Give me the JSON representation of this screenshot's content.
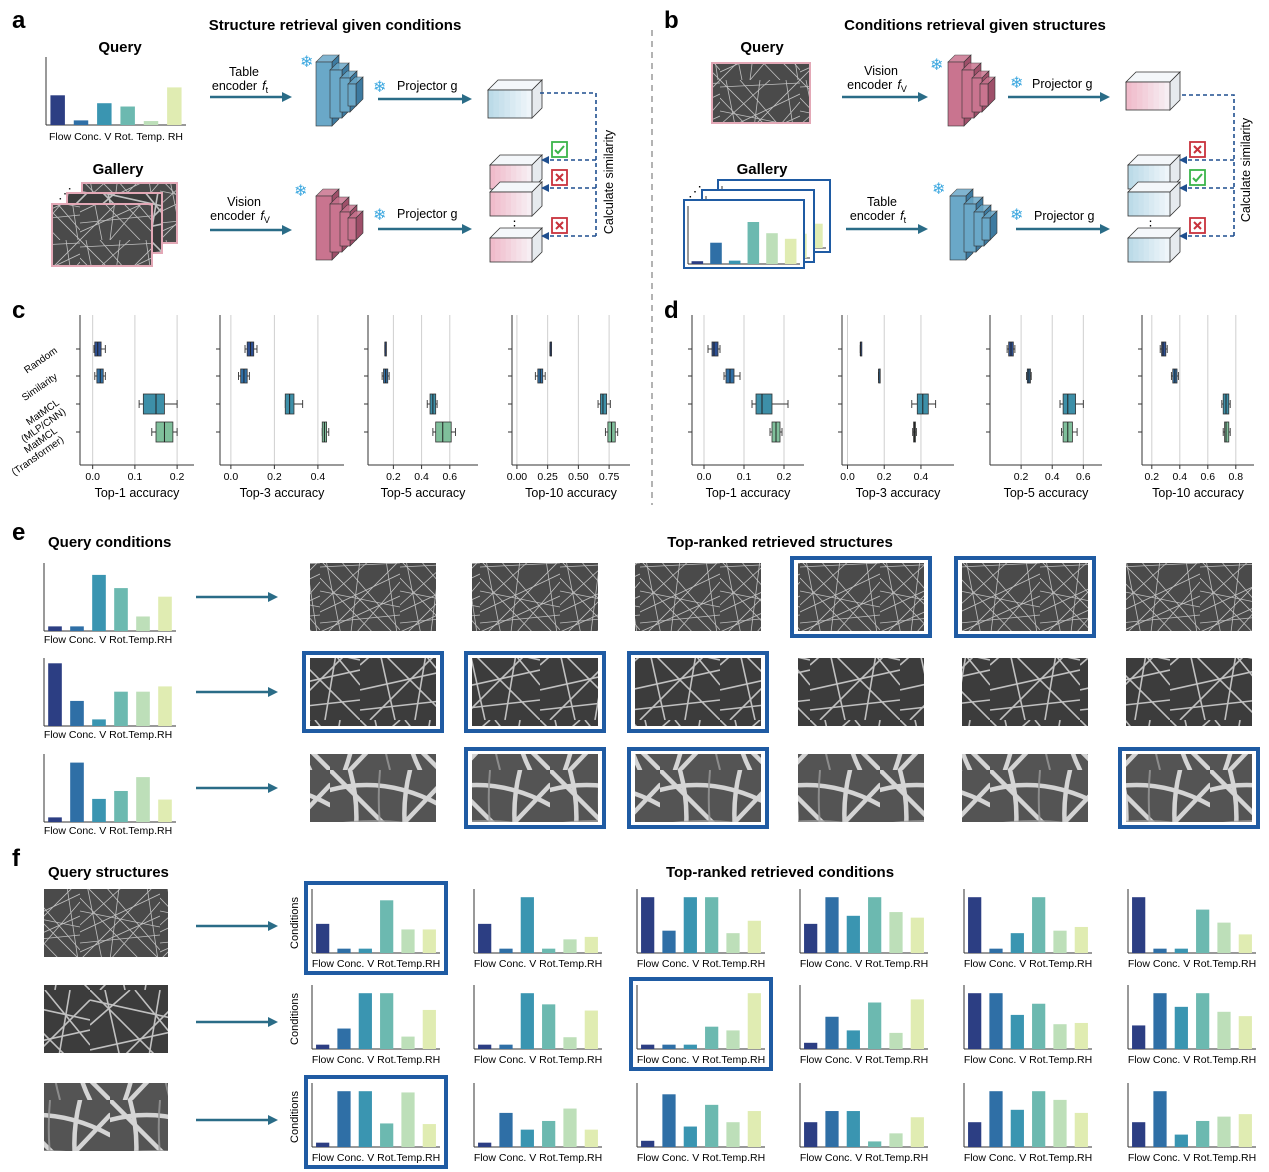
{
  "colors": {
    "var": [
      "#2c3e83",
      "#2f6fa6",
      "#3a95b1",
      "#6cb9b0",
      "#bddfb9",
      "#e0ecb2"
    ],
    "teal_block": "#6aa8c8",
    "pink_block": "#c9748f",
    "arrow": "#2a6c87",
    "dashed": "#1f4f8f",
    "highlight": "#1f5ba3",
    "check": "#3bb54a",
    "cross": "#c8323c",
    "snow": "#3fa9e0"
  },
  "panel_a": {
    "letter": "a",
    "title": "Structure retrieval given conditions",
    "query_label": "Query",
    "gallery_label": "Gallery",
    "table_encoder": [
      "Table",
      "encoder"
    ],
    "vision_encoder": [
      "Vision",
      "encoder"
    ],
    "f_table": "f",
    "f_table_sub": "t",
    "f_vision": "f",
    "f_vision_sub": "V",
    "projector": "Projector g",
    "similarity": "Calculate similarity",
    "axis_labels": [
      "Flow",
      "Conc.",
      "V",
      "Rot.",
      "Temp.",
      "RH"
    ],
    "query_bars": [
      0.45,
      0.07,
      0.33,
      0.28,
      0.06,
      0.57
    ],
    "marks": [
      "check",
      "cross",
      "cross"
    ]
  },
  "panel_b": {
    "letter": "b",
    "title": "Conditions retrieval given structures",
    "query_label": "Query",
    "gallery_label": "Gallery",
    "vision_encoder": [
      "Vision",
      "encoder"
    ],
    "table_encoder": [
      "Table",
      "encoder"
    ],
    "f_vision": "f",
    "f_vision_sub": "V",
    "f_table": "f",
    "f_table_sub": "t",
    "projector": "Projector g",
    "similarity": "Calculate similarity",
    "gallery_bars": [
      0.05,
      0.38,
      0.06,
      0.75,
      0.55,
      0.45
    ],
    "marks": [
      "cross",
      "check",
      "cross"
    ]
  },
  "panel_c": {
    "letter": "c",
    "row_labels": [
      [
        "Random"
      ],
      [
        "Similarity"
      ],
      [
        "MatMCL",
        "(MLP/CNN)"
      ],
      [
        "MatMCL",
        "(Transformer)"
      ]
    ],
    "subplots": [
      {
        "xlabel": "Top-1 accuracy",
        "ticks": [
          0.0,
          0.1,
          0.2
        ],
        "tick_labels": [
          "0.0",
          "0.1",
          "0.2"
        ],
        "range": [
          -0.03,
          0.24
        ],
        "boxes": [
          {
            "q1": 0.005,
            "med": 0.012,
            "q3": 0.02,
            "lo": 0.003,
            "hi": 0.03
          },
          {
            "q1": 0.01,
            "med": 0.018,
            "q3": 0.025,
            "lo": 0.005,
            "hi": 0.03
          },
          {
            "q1": 0.12,
            "med": 0.15,
            "q3": 0.17,
            "lo": 0.11,
            "hi": 0.2
          },
          {
            "q1": 0.15,
            "med": 0.17,
            "q3": 0.19,
            "lo": 0.14,
            "hi": 0.2
          }
        ]
      },
      {
        "xlabel": "Top-3 accuracy",
        "ticks": [
          0.0,
          0.2,
          0.4
        ],
        "tick_labels": [
          "0.0",
          "0.2",
          "0.4"
        ],
        "range": [
          -0.05,
          0.52
        ],
        "boxes": [
          {
            "q1": 0.075,
            "med": 0.09,
            "q3": 0.105,
            "lo": 0.065,
            "hi": 0.12
          },
          {
            "q1": 0.045,
            "med": 0.06,
            "q3": 0.075,
            "lo": 0.035,
            "hi": 0.085
          },
          {
            "q1": 0.25,
            "med": 0.27,
            "q3": 0.29,
            "lo": 0.25,
            "hi": 0.33
          },
          {
            "q1": 0.42,
            "med": 0.43,
            "q3": 0.44,
            "lo": 0.42,
            "hi": 0.45
          }
        ]
      },
      {
        "xlabel": "Top-5 accuracy",
        "ticks": [
          0.2,
          0.4,
          0.6
        ],
        "tick_labels": [
          "0.2",
          "0.4",
          "0.6"
        ],
        "range": [
          0.02,
          0.8
        ],
        "boxes": [
          {
            "q1": 0.14,
            "med": 0.14,
            "q3": 0.14,
            "lo": 0.14,
            "hi": 0.14
          },
          {
            "q1": 0.13,
            "med": 0.145,
            "q3": 0.16,
            "lo": 0.12,
            "hi": 0.17
          },
          {
            "q1": 0.46,
            "med": 0.48,
            "q3": 0.5,
            "lo": 0.44,
            "hi": 0.51
          },
          {
            "q1": 0.5,
            "med": 0.55,
            "q3": 0.61,
            "lo": 0.48,
            "hi": 0.64
          }
        ]
      },
      {
        "xlabel": "Top-10 accuracy",
        "ticks": [
          0.0,
          0.25,
          0.5,
          0.75
        ],
        "tick_labels": [
          "0.00",
          "0.25",
          "0.50",
          "0.75"
        ],
        "range": [
          -0.04,
          0.92
        ],
        "boxes": [
          {
            "q1": 0.27,
            "med": 0.27,
            "q3": 0.27,
            "lo": 0.27,
            "hi": 0.27
          },
          {
            "q1": 0.17,
            "med": 0.19,
            "q3": 0.21,
            "lo": 0.15,
            "hi": 0.23
          },
          {
            "q1": 0.68,
            "med": 0.7,
            "q3": 0.73,
            "lo": 0.66,
            "hi": 0.76
          },
          {
            "q1": 0.74,
            "med": 0.77,
            "q3": 0.8,
            "lo": 0.72,
            "hi": 0.82
          }
        ]
      }
    ]
  },
  "panel_d": {
    "letter": "d",
    "subplots": [
      {
        "xlabel": "Top-1 accuracy",
        "ticks": [
          0.0,
          0.1,
          0.2
        ],
        "tick_labels": [
          "0.0",
          "0.1",
          "0.2"
        ],
        "range": [
          -0.03,
          0.25
        ],
        "boxes": [
          {
            "q1": 0.02,
            "med": 0.025,
            "q3": 0.035,
            "lo": 0.01,
            "hi": 0.04
          },
          {
            "q1": 0.055,
            "med": 0.065,
            "q3": 0.075,
            "lo": 0.05,
            "hi": 0.09
          },
          {
            "q1": 0.13,
            "med": 0.145,
            "q3": 0.17,
            "lo": 0.12,
            "hi": 0.21
          },
          {
            "q1": 0.17,
            "med": 0.18,
            "q3": 0.19,
            "lo": 0.165,
            "hi": 0.195
          }
        ]
      },
      {
        "xlabel": "Top-3 accuracy",
        "ticks": [
          0.0,
          0.2,
          0.4
        ],
        "tick_labels": [
          "0.0",
          "0.2",
          "0.4"
        ],
        "range": [
          -0.03,
          0.58
        ],
        "boxes": [
          {
            "q1": 0.07,
            "med": 0.07,
            "q3": 0.07,
            "lo": 0.07,
            "hi": 0.07
          },
          {
            "q1": 0.17,
            "med": 0.17,
            "q3": 0.17,
            "lo": 0.17,
            "hi": 0.17
          },
          {
            "q1": 0.38,
            "med": 0.41,
            "q3": 0.44,
            "lo": 0.35,
            "hi": 0.48
          },
          {
            "q1": 0.36,
            "med": 0.365,
            "q3": 0.37,
            "lo": 0.355,
            "hi": 0.375
          }
        ]
      },
      {
        "xlabel": "Top-5 accuracy",
        "ticks": [
          0.2,
          0.4,
          0.6
        ],
        "tick_labels": [
          "0.2",
          "0.4",
          "0.6"
        ],
        "range": [
          0.0,
          0.72
        ],
        "boxes": [
          {
            "q1": 0.12,
            "med": 0.135,
            "q3": 0.15,
            "lo": 0.11,
            "hi": 0.16
          },
          {
            "q1": 0.24,
            "med": 0.25,
            "q3": 0.26,
            "lo": 0.235,
            "hi": 0.265
          },
          {
            "q1": 0.47,
            "med": 0.5,
            "q3": 0.55,
            "lo": 0.45,
            "hi": 0.6
          },
          {
            "q1": 0.47,
            "med": 0.5,
            "q3": 0.53,
            "lo": 0.46,
            "hi": 0.56
          }
        ]
      },
      {
        "xlabel": "Top-10 accuracy",
        "ticks": [
          0.2,
          0.4,
          0.6,
          0.8
        ],
        "tick_labels": [
          "0.2",
          "0.4",
          "0.6",
          "0.8"
        ],
        "range": [
          0.13,
          0.93
        ],
        "boxes": [
          {
            "q1": 0.27,
            "med": 0.28,
            "q3": 0.3,
            "lo": 0.26,
            "hi": 0.31
          },
          {
            "q1": 0.35,
            "med": 0.365,
            "q3": 0.38,
            "lo": 0.34,
            "hi": 0.39
          },
          {
            "q1": 0.71,
            "med": 0.73,
            "q3": 0.75,
            "lo": 0.7,
            "hi": 0.76
          },
          {
            "q1": 0.72,
            "med": 0.73,
            "q3": 0.75,
            "lo": 0.71,
            "hi": 0.76
          }
        ]
      }
    ]
  },
  "panel_e": {
    "letter": "e",
    "query_title": "Query conditions",
    "results_title": "Top-ranked retrieved structures",
    "axis_labels": [
      "Flow",
      "Conc.",
      "V",
      "Rot.",
      "Temp.",
      "RH"
    ],
    "rows": [
      {
        "bars": [
          0.07,
          0.07,
          0.85,
          0.65,
          0.22,
          0.52
        ],
        "highlight": [
          false,
          false,
          false,
          true,
          true,
          false
        ],
        "fiber": "fine"
      },
      {
        "bars": [
          0.95,
          0.38,
          0.1,
          0.52,
          0.52,
          0.6
        ],
        "highlight": [
          true,
          true,
          true,
          false,
          false,
          false
        ],
        "fiber": "medium"
      },
      {
        "bars": [
          0.07,
          0.9,
          0.35,
          0.47,
          0.68,
          0.34
        ],
        "highlight": [
          false,
          true,
          true,
          false,
          false,
          true
        ],
        "fiber": "coarse"
      }
    ]
  },
  "panel_f": {
    "letter": "f",
    "query_title": "Query structures",
    "results_title": "Top-ranked retrieved conditions",
    "ylabel": "Conditions",
    "axis_labels": [
      "Flow",
      "Conc.",
      "V",
      "Rot.",
      "Temp.",
      "RH"
    ],
    "rows": [
      {
        "fiber": "fine",
        "highlight": 0,
        "charts": [
          [
            0.47,
            0.07,
            0.07,
            0.85,
            0.38,
            0.38
          ],
          [
            0.47,
            0.07,
            0.9,
            0.07,
            0.22,
            0.26
          ],
          [
            0.9,
            0.36,
            0.9,
            0.9,
            0.32,
            0.52
          ],
          [
            0.47,
            0.9,
            0.6,
            0.9,
            0.66,
            0.57
          ],
          [
            0.9,
            0.07,
            0.32,
            0.9,
            0.36,
            0.42
          ],
          [
            0.9,
            0.07,
            0.07,
            0.7,
            0.49,
            0.3
          ]
        ]
      },
      {
        "fiber": "medium",
        "highlight": 2,
        "charts": [
          [
            0.07,
            0.33,
            0.9,
            0.9,
            0.2,
            0.63
          ],
          [
            0.07,
            0.07,
            0.9,
            0.72,
            0.19,
            0.62
          ],
          [
            0.07,
            0.07,
            0.07,
            0.36,
            0.3,
            0.9
          ],
          [
            0.1,
            0.52,
            0.3,
            0.75,
            0.26,
            0.8
          ],
          [
            0.9,
            0.9,
            0.55,
            0.73,
            0.4,
            0.42
          ],
          [
            0.38,
            0.9,
            0.68,
            0.9,
            0.6,
            0.53
          ]
        ]
      },
      {
        "fiber": "coarse",
        "highlight": 0,
        "charts": [
          [
            0.07,
            0.9,
            0.9,
            0.38,
            0.88,
            0.37
          ],
          [
            0.07,
            0.55,
            0.28,
            0.42,
            0.62,
            0.28
          ],
          [
            0.1,
            0.85,
            0.33,
            0.68,
            0.4,
            0.58
          ],
          [
            0.4,
            0.58,
            0.58,
            0.09,
            0.22,
            0.48
          ],
          [
            0.4,
            0.9,
            0.6,
            0.9,
            0.76,
            0.55
          ],
          [
            0.4,
            0.9,
            0.2,
            0.42,
            0.49,
            0.53
          ]
        ]
      }
    ]
  }
}
